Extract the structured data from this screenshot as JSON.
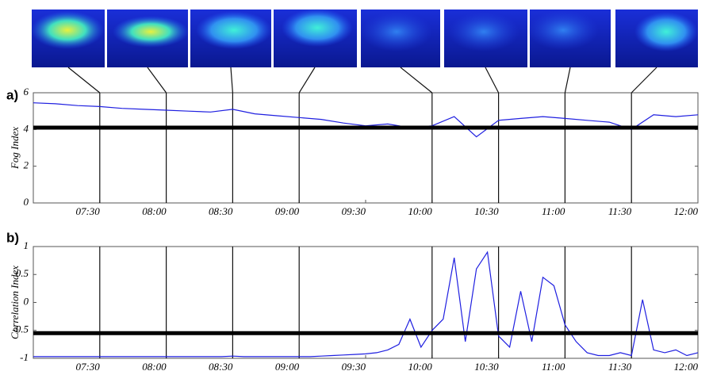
{
  "chart_data": [
    {
      "type": "line",
      "label": "a)",
      "ylabel": "Fog Index",
      "x": [
        "07:00",
        "07:10",
        "07:20",
        "07:30",
        "07:40",
        "07:50",
        "08:00",
        "08:10",
        "08:20",
        "08:30",
        "08:40",
        "08:50",
        "09:00",
        "09:10",
        "09:20",
        "09:30",
        "09:40",
        "09:50",
        "10:00",
        "10:10",
        "10:20",
        "10:30",
        "10:40",
        "10:50",
        "11:00",
        "11:10",
        "11:20",
        "11:30",
        "11:40",
        "11:50",
        "12:00"
      ],
      "values": [
        5.45,
        5.4,
        5.3,
        5.25,
        5.15,
        5.1,
        5.05,
        5.0,
        4.95,
        5.1,
        4.85,
        4.75,
        4.65,
        4.55,
        4.35,
        4.2,
        4.3,
        4.1,
        4.2,
        4.7,
        3.6,
        4.5,
        4.6,
        4.7,
        4.6,
        4.5,
        4.4,
        4.0,
        4.8,
        4.7,
        4.8
      ],
      "color": "#1f1fe0",
      "threshold": 4.1,
      "xlim": [
        "07:00",
        "12:00"
      ],
      "xticks": [
        "07:30",
        "08:00",
        "08:30",
        "09:00",
        "09:30",
        "10:00",
        "10:30",
        "11:00",
        "11:30",
        "12:00"
      ],
      "ylim": [
        0,
        6
      ],
      "yticks": [
        0,
        2,
        4,
        6
      ],
      "events": [
        "07:30",
        "08:00",
        "08:30",
        "09:00",
        "10:00",
        "10:30",
        "11:00",
        "11:30"
      ]
    },
    {
      "type": "line",
      "label": "b)",
      "ylabel": "Correlation Index",
      "x": [
        "07:00",
        "07:05",
        "07:10",
        "07:15",
        "07:20",
        "07:25",
        "07:30",
        "07:35",
        "07:40",
        "07:45",
        "07:50",
        "07:55",
        "08:00",
        "08:05",
        "08:10",
        "08:15",
        "08:20",
        "08:25",
        "08:30",
        "08:35",
        "08:40",
        "08:45",
        "08:50",
        "08:55",
        "09:00",
        "09:05",
        "09:10",
        "09:15",
        "09:20",
        "09:25",
        "09:30",
        "09:35",
        "09:40",
        "09:45",
        "09:50",
        "09:55",
        "10:00",
        "10:05",
        "10:10",
        "10:15",
        "10:20",
        "10:25",
        "10:30",
        "10:35",
        "10:40",
        "10:45",
        "10:50",
        "10:55",
        "11:00",
        "11:05",
        "11:10",
        "11:15",
        "11:20",
        "11:25",
        "11:30",
        "11:35",
        "11:40",
        "11:45",
        "11:50",
        "11:55",
        "12:00"
      ],
      "values": [
        -0.97,
        -0.97,
        -0.97,
        -0.97,
        -0.97,
        -0.97,
        -0.97,
        -0.97,
        -0.97,
        -0.97,
        -0.97,
        -0.97,
        -0.97,
        -0.97,
        -0.97,
        -0.97,
        -0.97,
        -0.97,
        -0.96,
        -0.97,
        -0.97,
        -0.97,
        -0.97,
        -0.97,
        -0.97,
        -0.97,
        -0.96,
        -0.95,
        -0.94,
        -0.93,
        -0.92,
        -0.9,
        -0.85,
        -0.75,
        -0.3,
        -0.8,
        -0.5,
        -0.3,
        0.8,
        -0.7,
        0.6,
        0.9,
        -0.6,
        -0.8,
        0.2,
        -0.7,
        0.45,
        0.3,
        -0.4,
        -0.7,
        -0.9,
        -0.95,
        -0.95,
        -0.9,
        -0.95,
        0.05,
        -0.85,
        -0.9,
        -0.85,
        -0.95,
        -0.9
      ],
      "color": "#1f1fe0",
      "threshold": -0.55,
      "xlim": [
        "07:00",
        "12:00"
      ],
      "xticks": [
        "07:30",
        "08:00",
        "08:30",
        "09:00",
        "09:30",
        "10:00",
        "10:30",
        "11:00",
        "11:30",
        "12:00"
      ],
      "ylim": [
        -1,
        1
      ],
      "yticks": [
        -1,
        -0.5,
        0,
        0.5,
        1
      ],
      "events": [
        "07:30",
        "08:00",
        "08:30",
        "09:00",
        "10:00",
        "10:30",
        "11:00",
        "11:30"
      ]
    }
  ]
}
